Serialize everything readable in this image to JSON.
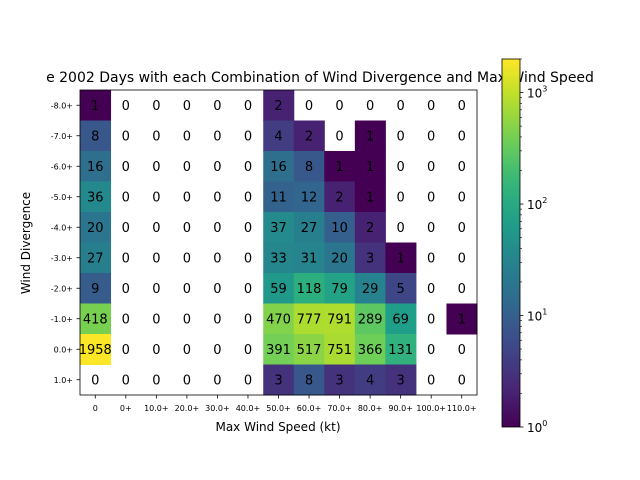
{
  "chart_data": {
    "type": "heatmap",
    "title": "e 2002 Days with each Combination of Wind Divergence and Max Wind Speed",
    "xlabel": "Max Wind Speed (kt)",
    "ylabel": "Wind Divergence",
    "x_categories": [
      "0",
      "0+",
      "10.0+",
      "20.0+",
      "30.0+",
      "40.0+",
      "50.0+",
      "60.0+",
      "70.0+",
      "80.0+",
      "90.0+",
      "100.0+",
      "110.0+"
    ],
    "y_categories": [
      "-8.0+",
      "-7.0+",
      "-6.0+",
      "-5.0+",
      "-4.0+",
      "-3.0+",
      "-2.0+",
      "-1.0+",
      "0.0+",
      "1.0+"
    ],
    "values": [
      [
        1,
        0,
        0,
        0,
        0,
        0,
        2,
        0,
        0,
        0,
        0,
        0,
        0
      ],
      [
        8,
        0,
        0,
        0,
        0,
        0,
        4,
        2,
        0,
        1,
        0,
        0,
        0
      ],
      [
        16,
        0,
        0,
        0,
        0,
        0,
        16,
        8,
        1,
        1,
        0,
        0,
        0
      ],
      [
        36,
        0,
        0,
        0,
        0,
        0,
        11,
        12,
        2,
        1,
        0,
        0,
        0
      ],
      [
        20,
        0,
        0,
        0,
        0,
        0,
        37,
        27,
        10,
        2,
        0,
        0,
        0
      ],
      [
        27,
        0,
        0,
        0,
        0,
        0,
        33,
        31,
        20,
        3,
        1,
        0,
        0
      ],
      [
        9,
        0,
        0,
        0,
        0,
        0,
        59,
        118,
        79,
        29,
        5,
        0,
        0
      ],
      [
        418,
        0,
        0,
        0,
        0,
        0,
        470,
        777,
        791,
        289,
        69,
        0,
        1
      ],
      [
        1958,
        0,
        0,
        0,
        0,
        0,
        391,
        517,
        751,
        366,
        131,
        0,
        0
      ],
      [
        0,
        0,
        0,
        0,
        0,
        0,
        3,
        8,
        3,
        4,
        3,
        0,
        0
      ]
    ],
    "colorscale": "viridis",
    "color_scale_type": "log",
    "colorbar_range": [
      1,
      2000
    ],
    "colorbar_ticks": [
      {
        "value": 1,
        "base": "10",
        "exp": "0"
      },
      {
        "value": 10,
        "base": "10",
        "exp": "1"
      },
      {
        "value": 100,
        "base": "10",
        "exp": "2"
      },
      {
        "value": 1000,
        "base": "10",
        "exp": "3"
      }
    ]
  }
}
